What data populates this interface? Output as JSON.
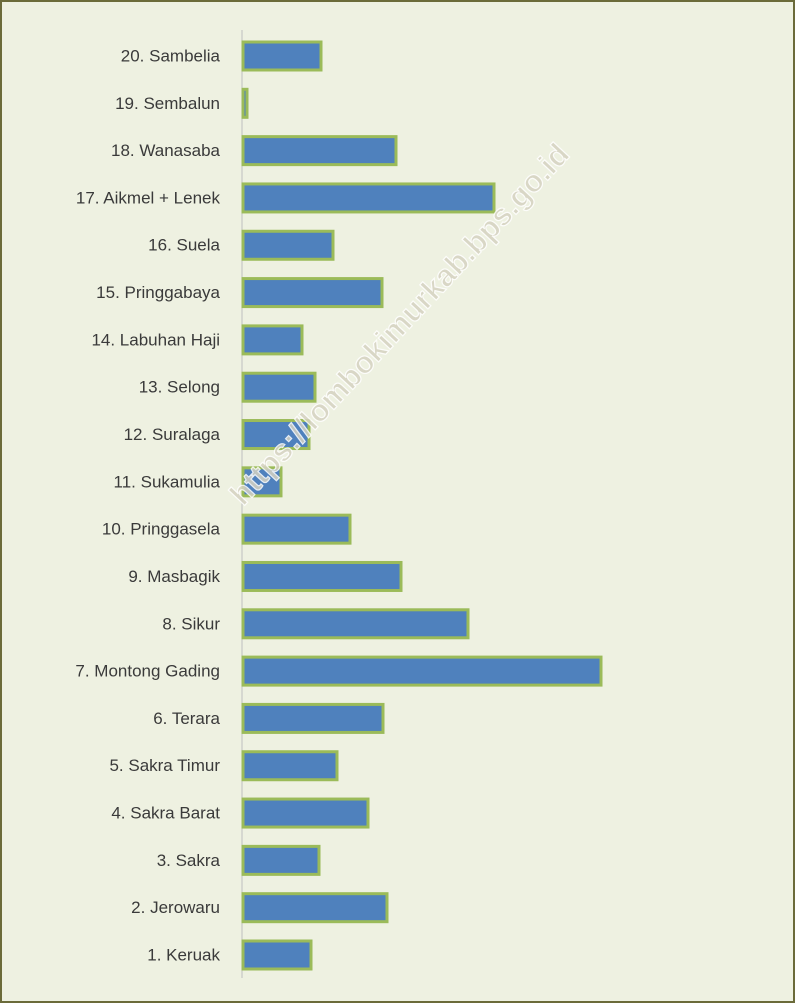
{
  "chart_data": {
    "type": "barh",
    "categories": [
      "1. Keruak",
      "2. Jerowaru",
      "3. Sakra",
      "4. Sakra Barat",
      "5. Sakra Timur",
      "6. Terara",
      "7. Montong Gading",
      "8. Sikur",
      "9. Masbagik",
      "10. Pringgasela",
      "11. Sukamulia",
      "12. Suralaga",
      "13. Selong",
      "14. Labuhan Haji",
      "15. Pringgabaya",
      "16. Suela",
      "17. Aikmel + Lenek",
      "18. Wanasaba",
      "19. Sembalun",
      "20. Sambelia"
    ],
    "values": [
      68,
      144,
      76,
      125,
      94,
      140,
      358,
      225,
      158,
      107,
      38,
      66,
      72,
      59,
      139,
      90,
      251,
      153,
      4,
      78
    ],
    "color": "#4f81bd",
    "edge_color": "#9bbb59",
    "watermark": "https://lombokimurkab.bps.go.id"
  }
}
